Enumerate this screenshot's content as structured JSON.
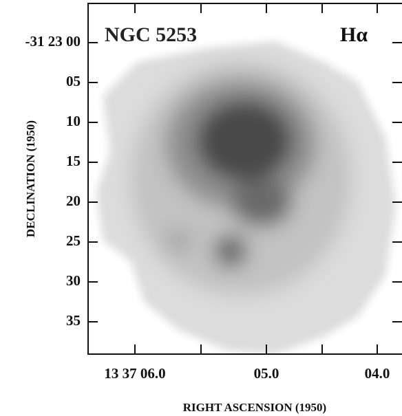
{
  "figure": {
    "title": "NGC 5253",
    "band": "Hα",
    "y_axis": {
      "label": "DECLINATION (1950)",
      "tick_labels": [
        "-31 23 00",
        "05",
        "10",
        "15",
        "20",
        "25",
        "30",
        "35"
      ]
    },
    "x_axis": {
      "label": "RIGHT ASCENSION (1950)",
      "tick_labels": [
        "13 37 06.0",
        "05.0",
        "04.0"
      ]
    }
  }
}
